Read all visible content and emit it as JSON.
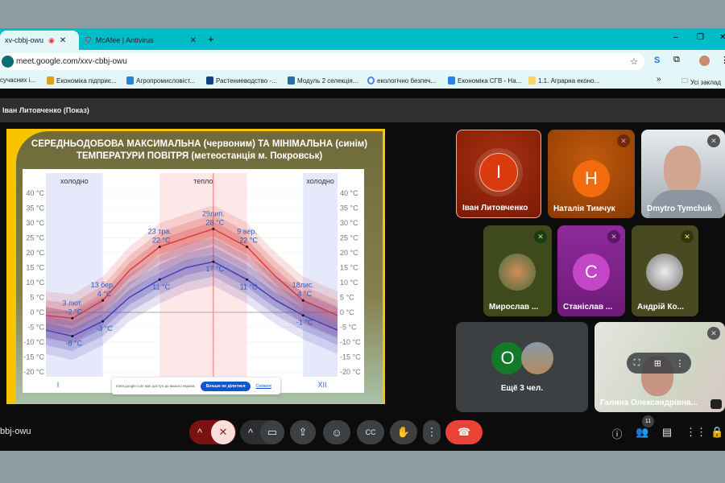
{
  "browser": {
    "tabs": [
      {
        "label": "xv-cbbj-owu",
        "recording": true
      },
      {
        "label": "McAfee | Antivirus"
      }
    ],
    "new_tab": "+",
    "url": "meet.google.com/xxv-cbbj-owu",
    "bookmarks": [
      "сучасних і...",
      "Економіка підприє...",
      "Агропромисловіст...",
      "Растениеводство -...",
      "Модуль 2 селекція...",
      "екологічно безпеч...",
      "Економіка СГВ - На...",
      "1.1. Аграрна еконо..."
    ],
    "bookmarks_more": "»",
    "all_bookmarks": "Усі заклад"
  },
  "meet": {
    "presenter_title": "Іван Литовченко (Показ)",
    "meeting_code": "bbj-owu",
    "participants_count": "11",
    "share_bar": {
      "text": "meet.google.com має доступ до вашого екрана.",
      "stop_label": "Більше не ділитися",
      "hide_label": "Сховати"
    },
    "tiles": [
      {
        "name": "Іван Литовченко",
        "initial": "I",
        "color": "#d93a0e",
        "bg": "#8d1f08",
        "speaking": true
      },
      {
        "name": "Наталія Тимчук",
        "initial": "Н",
        "color": "#f26b0f",
        "bg": "#b24a08",
        "muted": true
      },
      {
        "name": "Dmytro Tymchuk",
        "video": true,
        "muted": true
      },
      {
        "name": "Мирослав ...",
        "photo": true,
        "bg": "#3f4a1c",
        "muted": true
      },
      {
        "name": "Станіслав ...",
        "initial": "C",
        "color": "#c346c6",
        "bg": "#7a1f85",
        "muted": true
      },
      {
        "name": "Андрій Ко...",
        "photo": true,
        "bg": "#4a4a22",
        "muted": true
      },
      {
        "name": "Ещё 3 чел.",
        "initial": "O",
        "color": "#137a2a"
      },
      {
        "name": "Галина Олександрівна...",
        "video": true,
        "muted": true
      }
    ],
    "toolbar": [
      "mic-off",
      "camera",
      "present",
      "emoji",
      "captions",
      "raise-hand",
      "more",
      "end-call"
    ],
    "right_icons": [
      "info",
      "people",
      "chat",
      "activities",
      "host-controls"
    ],
    "accent_end": "#ea4335"
  },
  "slide": {
    "title_line1": "СЕРЕДНЬОДОБОВА МАКСИМАЛЬНА (червоним) ТА МІНІМАЛЬНА (синім)",
    "title_line2": "ТЕМПЕРАТУРИ  ПОВІТРЯ (метеостанція м. Покровськ)"
  },
  "chart_data": {
    "type": "line",
    "ylim": [
      -20,
      40
    ],
    "yticks": [
      "40 °C",
      "35 °C",
      "30 °C",
      "25 °C",
      "20 °C",
      "15 °C",
      "10 °C",
      "5 °C",
      "0 °C",
      "-5 °C",
      "-10 °C",
      "-15 °C",
      "-20 °C"
    ],
    "x_month_labels": [
      "I",
      "XII"
    ],
    "regions": [
      {
        "label": "холодно",
        "from": "01-01",
        "to": "03-13",
        "kind": "cold"
      },
      {
        "label": "тепло",
        "from": "05-23",
        "to": "09-09",
        "kind": "warm"
      },
      {
        "label": "холодно",
        "from": "11-18",
        "to": "12-31",
        "kind": "cold"
      }
    ],
    "today": "07-29",
    "series": [
      {
        "kind": "max",
        "color": "#d8403f",
        "points": [
          [
            "01-01",
            -1
          ],
          [
            "02-03",
            -2
          ],
          [
            "03-13",
            4
          ],
          [
            "04-15",
            14
          ],
          [
            "05-23",
            22
          ],
          [
            "06-25",
            25
          ],
          [
            "07-29",
            28
          ],
          [
            "09-09",
            22
          ],
          [
            "10-15",
            12
          ],
          [
            "11-18",
            4
          ],
          [
            "12-31",
            -1
          ]
        ]
      },
      {
        "kind": "min",
        "color": "#4a3fb0",
        "points": [
          [
            "01-01",
            -6
          ],
          [
            "02-03",
            -8
          ],
          [
            "03-13",
            -3
          ],
          [
            "04-15",
            5
          ],
          [
            "05-23",
            11
          ],
          [
            "06-25",
            15
          ],
          [
            "07-29",
            17
          ],
          [
            "09-09",
            11
          ],
          [
            "10-15",
            4
          ],
          [
            "11-18",
            -1
          ],
          [
            "12-31",
            -6
          ]
        ]
      }
    ],
    "annotations": [
      {
        "date": "02-03",
        "value": -2,
        "series": "max",
        "label": "3 лют.",
        "value_label": "-2 °C"
      },
      {
        "date": "02-03",
        "value": -8,
        "series": "min",
        "value_label": "-8 °C"
      },
      {
        "date": "03-13",
        "value": 4,
        "series": "max",
        "label": "13 бер.",
        "value_label": "4 °C"
      },
      {
        "date": "03-13",
        "value": -3,
        "series": "min",
        "value_label": "-3 °C"
      },
      {
        "date": "05-23",
        "value": 22,
        "series": "max",
        "label": "23 тра.",
        "value_label": "22 °C"
      },
      {
        "date": "05-23",
        "value": 11,
        "series": "min",
        "value_label": "11 °C"
      },
      {
        "date": "07-29",
        "value": 28,
        "series": "max",
        "label": "29лип.",
        "value_label": "28 °C"
      },
      {
        "date": "07-29",
        "value": 17,
        "series": "min",
        "value_label": "17 °C"
      },
      {
        "date": "09-09",
        "value": 22,
        "series": "max",
        "label": "9 вер.",
        "value_label": "22 °C"
      },
      {
        "date": "09-09",
        "value": 11,
        "series": "min",
        "value_label": "11 °C"
      },
      {
        "date": "11-18",
        "value": 4,
        "series": "max",
        "label": "18лис.",
        "value_label": "4 °C"
      },
      {
        "date": "11-18",
        "value": -1,
        "series": "min",
        "value_label": "-1 °C"
      }
    ]
  }
}
